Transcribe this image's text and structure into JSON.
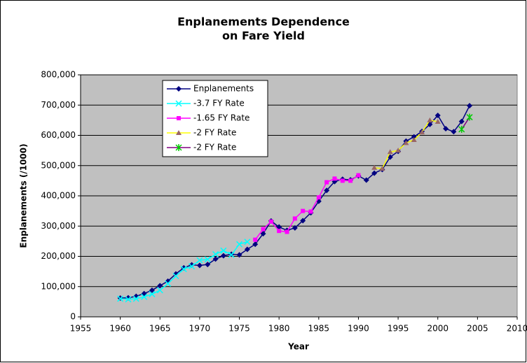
{
  "chart_data": {
    "type": "line",
    "title": [
      "Enplanements Dependence",
      "on Fare Yield"
    ],
    "x_label": "Year",
    "y_label": "Enplanements (/1000)",
    "x": [
      1960,
      1961,
      1962,
      1963,
      1964,
      1965,
      1966,
      1967,
      1968,
      1969,
      1970,
      1971,
      1972,
      1973,
      1974,
      1975,
      1976,
      1977,
      1978,
      1979,
      1980,
      1981,
      1982,
      1983,
      1984,
      1985,
      1986,
      1987,
      1988,
      1989,
      1990,
      1991,
      1992,
      1993,
      1994,
      1995,
      1996,
      1997,
      1998,
      1999,
      2000,
      2001,
      2002,
      2003,
      2004
    ],
    "xlim": [
      1955,
      2010
    ],
    "xticks": [
      1955,
      1960,
      1965,
      1970,
      1975,
      1980,
      1985,
      1990,
      1995,
      2000,
      2005,
      2010
    ],
    "ylim": [
      0,
      800000
    ],
    "yticks": [
      {
        "value": 0,
        "label": "0"
      },
      {
        "value": 100000,
        "label": "100,000"
      },
      {
        "value": 200000,
        "label": "200,000"
      },
      {
        "value": 300000,
        "label": "300,000"
      },
      {
        "value": 400000,
        "label": "400,000"
      },
      {
        "value": 500000,
        "label": "500,000"
      },
      {
        "value": 600000,
        "label": "600,000"
      },
      {
        "value": 700000,
        "label": "700,000"
      },
      {
        "value": 800000,
        "label": "800,000"
      }
    ],
    "grid": true,
    "legend": "upper left",
    "plot_background": "#c0c0c0",
    "series": [
      {
        "name": "Enplanements",
        "color": "#000080",
        "marker": "diamond",
        "marker_color": "#000080",
        "values": [
          62000,
          63000,
          68000,
          77000,
          88000,
          103000,
          118000,
          142000,
          162000,
          172000,
          170000,
          173000,
          191000,
          202000,
          207000,
          205000,
          223000,
          240000,
          275000,
          317000,
          297000,
          286000,
          294000,
          318000,
          344000,
          382000,
          418000,
          447000,
          455000,
          453000,
          466000,
          452000,
          475000,
          487000,
          528000,
          547000,
          581000,
          595000,
          613000,
          636000,
          666000,
          622000,
          612000,
          646000,
          698000
        ]
      },
      {
        "name": "-3.7 FY Rate",
        "color": "#00ffff",
        "marker": "x",
        "marker_color": "#00ffff",
        "values": [
          60000,
          58000,
          60000,
          66000,
          75000,
          88000,
          110000,
          135000,
          158000,
          167000,
          187000,
          190000,
          207000,
          219000,
          205000,
          240000,
          248000,
          null,
          null,
          null,
          null,
          null,
          null,
          null,
          null,
          null,
          null,
          null,
          null,
          null,
          null,
          null,
          null,
          null,
          null,
          null,
          null,
          null,
          null,
          null,
          null,
          null,
          null,
          null,
          null
        ]
      },
      {
        "name": "-1.65 FY Rate",
        "color": "#ff00ff",
        "marker": "square",
        "marker_color": "#ff00ff",
        "values": [
          null,
          null,
          null,
          null,
          null,
          null,
          null,
          null,
          null,
          null,
          null,
          null,
          null,
          null,
          null,
          null,
          null,
          255000,
          290000,
          315000,
          284000,
          281000,
          325000,
          350000,
          348000,
          395000,
          445000,
          457000,
          450000,
          450000,
          468000,
          null,
          null,
          null,
          null,
          null,
          null,
          null,
          null,
          null,
          null,
          null,
          null,
          null,
          null
        ]
      },
      {
        "name": "-2 FY Rate",
        "color": "#ffff00",
        "marker": "triangle",
        "marker_color": "#996666",
        "values": [
          null,
          null,
          null,
          null,
          null,
          null,
          null,
          null,
          null,
          null,
          null,
          null,
          null,
          null,
          null,
          null,
          null,
          null,
          null,
          null,
          null,
          null,
          null,
          null,
          null,
          null,
          null,
          null,
          null,
          null,
          null,
          null,
          493000,
          490000,
          545000,
          550000,
          575000,
          585000,
          610000,
          650000,
          645000,
          null,
          null,
          null,
          null
        ]
      },
      {
        "name": "-2 FY Rate",
        "color": "#800080",
        "marker": "asterisk",
        "marker_color": "#00cc00",
        "values": [
          null,
          null,
          null,
          null,
          null,
          null,
          null,
          null,
          null,
          null,
          null,
          null,
          null,
          null,
          null,
          null,
          null,
          null,
          null,
          null,
          null,
          null,
          null,
          null,
          null,
          null,
          null,
          null,
          null,
          null,
          null,
          null,
          null,
          null,
          null,
          null,
          null,
          null,
          null,
          null,
          null,
          null,
          null,
          620000,
          660000
        ]
      }
    ]
  }
}
